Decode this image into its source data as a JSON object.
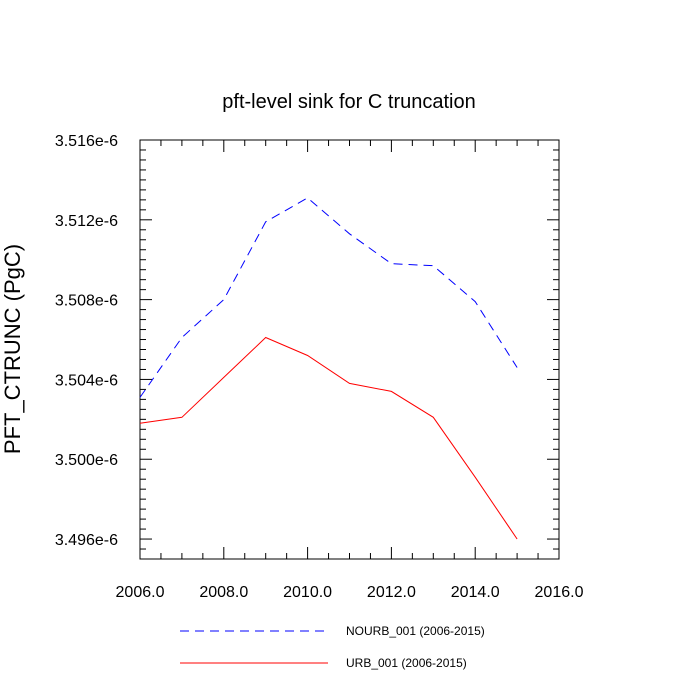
{
  "chart_data": {
    "type": "line",
    "title": "pft-level sink for C truncation",
    "xlabel": "",
    "ylabel": "PFT_CTRUNC  (PgC)",
    "xlim": [
      2006,
      2016
    ],
    "ylim": [
      3.495e-06,
      3.516e-06
    ],
    "x_ticks": [
      2006,
      2008,
      2010,
      2012,
      2014,
      2016
    ],
    "x_tick_labels": [
      "2006.0",
      "2008.0",
      "2010.0",
      "2012.0",
      "2014.0",
      "2016.0"
    ],
    "y_ticks": [
      3.496e-06,
      3.5e-06,
      3.504e-06,
      3.508e-06,
      3.512e-06,
      3.516e-06
    ],
    "y_tick_labels": [
      "3.496e-6",
      "3.500e-6",
      "3.504e-6",
      "3.508e-6",
      "3.512e-6",
      "3.516e-6"
    ],
    "x": [
      2006,
      2007,
      2008,
      2009,
      2010,
      2011,
      2012,
      2013,
      2014,
      2015
    ],
    "series": [
      {
        "name": "NOURB_001 (2006-2015)",
        "color": "#0000ff",
        "style": "dashed",
        "values": [
          3.5031e-06,
          3.5061e-06,
          3.508e-06,
          3.5119e-06,
          3.5131e-06,
          3.5113e-06,
          3.5098e-06,
          3.5097e-06,
          3.5079e-06,
          3.5046e-06
        ]
      },
      {
        "name": "URB_001 (2006-2015)",
        "color": "#ff0000",
        "style": "solid",
        "values": [
          3.5018e-06,
          3.5021e-06,
          3.5041e-06,
          3.5061e-06,
          3.5052e-06,
          3.5038e-06,
          3.5034e-06,
          3.5021e-06,
          3.4991e-06,
          3.496e-06
        ]
      }
    ],
    "grid": false,
    "legend_position": "bottom"
  }
}
